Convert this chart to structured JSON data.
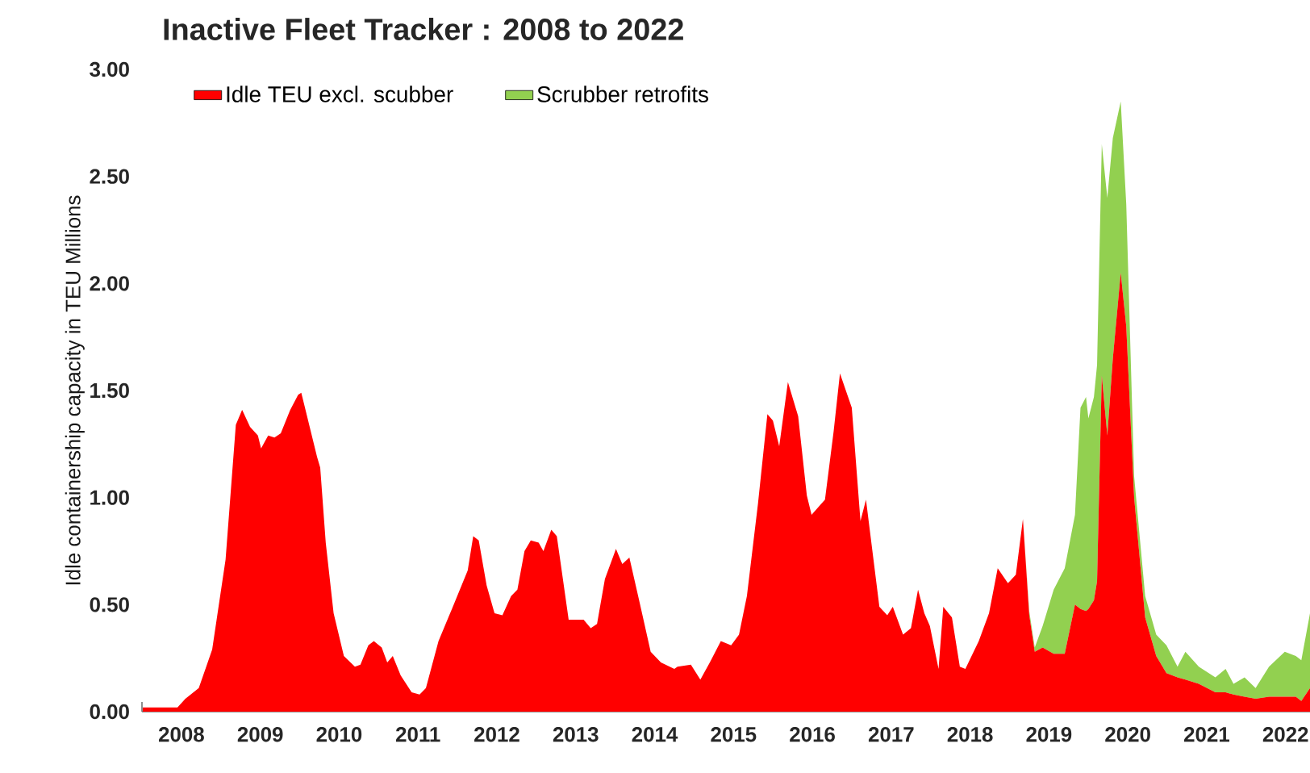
{
  "chart_data": {
    "type": "area",
    "title": "Inactive Fleet Tracker : 2008 to 2022",
    "ylabel": "Idle containership capacity in TEU Millions",
    "stacked": true,
    "legend": "top left",
    "x": [
      2008.01,
      2008.45,
      2008.55,
      2008.72,
      2008.89,
      2009.06,
      2009.19,
      2009.27,
      2009.37,
      2009.47,
      2009.51,
      2009.6,
      2009.68,
      2009.76,
      2009.88,
      2009.98,
      2010.02,
      2010.12,
      2010.22,
      2010.26,
      2010.33,
      2010.43,
      2010.56,
      2010.7,
      2010.77,
      2010.87,
      2010.94,
      2011.04,
      2011.11,
      2011.18,
      2011.28,
      2011.42,
      2011.52,
      2011.6,
      2011.76,
      2011.93,
      2012.13,
      2012.2,
      2012.27,
      2012.37,
      2012.47,
      2012.57,
      2012.68,
      2012.76,
      2012.85,
      2012.93,
      2013.03,
      2013.09,
      2013.19,
      2013.26,
      2013.41,
      2013.6,
      2013.69,
      2013.77,
      2013.87,
      2014.01,
      2014.09,
      2014.18,
      2014.31,
      2014.45,
      2014.58,
      2014.75,
      2014.79,
      2014.96,
      2015.08,
      2015.2,
      2015.34,
      2015.47,
      2015.57,
      2015.67,
      2015.81,
      2015.93,
      2016.0,
      2016.08,
      2016.19,
      2016.32,
      2016.43,
      2016.49,
      2016.66,
      2016.77,
      2016.85,
      2017.0,
      2017.11,
      2017.18,
      2017.35,
      2017.45,
      2017.52,
      2017.65,
      2017.75,
      2017.84,
      2017.92,
      2017.99,
      2018.1,
      2018.16,
      2018.27,
      2018.37,
      2018.44,
      2018.61,
      2018.74,
      2018.85,
      2018.98,
      2019.08,
      2019.17,
      2019.25,
      2019.32,
      2019.42,
      2019.56,
      2019.7,
      2019.83,
      2019.9,
      2019.97,
      2020.0,
      2020.07,
      2020.11,
      2020.17,
      2020.24,
      2020.31,
      2020.41,
      2020.48,
      2020.58,
      2020.72,
      2020.86,
      2020.99,
      2021.13,
      2021.23,
      2021.4,
      2021.61,
      2021.74,
      2021.84,
      2021.98,
      2022.12,
      2022.29,
      2022.49,
      2022.63,
      2022.7,
      2022.81
    ],
    "series": [
      {
        "name": "Idle TEU excl. scubber",
        "color": "#ff0000",
        "values": [
          0.02,
          0.02,
          0.06,
          0.11,
          0.29,
          0.71,
          1.34,
          1.41,
          1.33,
          1.29,
          1.23,
          1.29,
          1.28,
          1.3,
          1.41,
          1.48,
          1.49,
          1.34,
          1.19,
          1.14,
          0.79,
          0.46,
          0.26,
          0.21,
          0.22,
          0.31,
          0.33,
          0.3,
          0.23,
          0.26,
          0.17,
          0.09,
          0.08,
          0.11,
          0.33,
          0.48,
          0.66,
          0.82,
          0.8,
          0.59,
          0.46,
          0.45,
          0.54,
          0.57,
          0.75,
          0.8,
          0.79,
          0.75,
          0.85,
          0.82,
          0.43,
          0.43,
          0.39,
          0.41,
          0.62,
          0.76,
          0.69,
          0.72,
          0.51,
          0.28,
          0.23,
          0.2,
          0.21,
          0.22,
          0.15,
          0.23,
          0.33,
          0.31,
          0.36,
          0.54,
          0.97,
          1.39,
          1.36,
          1.24,
          1.54,
          1.38,
          1.01,
          0.92,
          0.99,
          1.31,
          1.58,
          1.42,
          0.89,
          0.99,
          0.49,
          0.45,
          0.49,
          0.36,
          0.39,
          0.57,
          0.46,
          0.4,
          0.2,
          0.49,
          0.44,
          0.21,
          0.2,
          0.33,
          0.46,
          0.67,
          0.6,
          0.64,
          0.9,
          0.45,
          0.28,
          0.3,
          0.27,
          0.27,
          0.5,
          0.48,
          0.47,
          0.48,
          0.52,
          0.61,
          1.57,
          1.29,
          1.65,
          2.05,
          1.8,
          1.0,
          0.44,
          0.26,
          0.18,
          0.16,
          0.15,
          0.13,
          0.09,
          0.09,
          0.08,
          0.07,
          0.06,
          0.07,
          0.07,
          0.07,
          0.05,
          0.11
        ]
      },
      {
        "name": "Scrubber retrofits",
        "color": "#92d050",
        "values": [
          0,
          0,
          0,
          0,
          0,
          0,
          0,
          0,
          0,
          0,
          0,
          0,
          0,
          0,
          0,
          0,
          0,
          0,
          0,
          0,
          0,
          0,
          0,
          0,
          0,
          0,
          0,
          0,
          0,
          0,
          0,
          0,
          0,
          0,
          0,
          0,
          0,
          0,
          0,
          0,
          0,
          0,
          0,
          0,
          0,
          0,
          0,
          0,
          0,
          0,
          0,
          0,
          0,
          0,
          0,
          0,
          0,
          0,
          0,
          0,
          0,
          0,
          0,
          0,
          0,
          0,
          0,
          0,
          0,
          0,
          0,
          0,
          0,
          0,
          0,
          0,
          0,
          0,
          0,
          0,
          0,
          0,
          0,
          0,
          0,
          0,
          0,
          0,
          0,
          0,
          0,
          0,
          0,
          0,
          0,
          0,
          0,
          0,
          0,
          0,
          0,
          0,
          0,
          0.02,
          0.02,
          0.1,
          0.3,
          0.4,
          0.42,
          0.94,
          1.0,
          0.89,
          0.95,
          1.01,
          1.08,
          1.11,
          1.03,
          0.8,
          0.57,
          0.1,
          0.1,
          0.1,
          0.13,
          0.05,
          0.13,
          0.08,
          0.07,
          0.11,
          0.05,
          0.09,
          0.05,
          0.14,
          0.21,
          0.19,
          0.19,
          0.35
        ]
      }
    ],
    "xlim": [
      2008,
      2022.81
    ],
    "ylim": [
      0,
      3
    ],
    "xticks": [
      {
        "value": 2008,
        "label": null
      },
      {
        "value": 2009,
        "label": null
      },
      {
        "value": 2010,
        "label": null
      },
      {
        "value": 2011,
        "label": null
      },
      {
        "value": 2012,
        "label": null
      },
      {
        "value": 2013,
        "label": null
      },
      {
        "value": 2014,
        "label": null
      },
      {
        "value": 2015,
        "label": null
      },
      {
        "value": 2016,
        "label": null
      },
      {
        "value": 2017,
        "label": null
      },
      {
        "value": 2018,
        "label": null
      },
      {
        "value": 2019,
        "label": null
      },
      {
        "value": 2020,
        "label": null
      },
      {
        "value": 2021,
        "label": null
      },
      {
        "value": 2022,
        "label": null
      },
      {
        "value": 2008.5,
        "label": "2008"
      },
      {
        "value": 2009.5,
        "label": "2009"
      },
      {
        "value": 2010.5,
        "label": "2010"
      },
      {
        "value": 2011.5,
        "label": "2011"
      },
      {
        "value": 2012.5,
        "label": "2012"
      },
      {
        "value": 2013.5,
        "label": "2013"
      },
      {
        "value": 2014.5,
        "label": "2014"
      },
      {
        "value": 2015.5,
        "label": "2015"
      },
      {
        "value": 2016.5,
        "label": "2016"
      },
      {
        "value": 2017.5,
        "label": "2017"
      },
      {
        "value": 2018.5,
        "label": "2018"
      },
      {
        "value": 2019.5,
        "label": "2019"
      },
      {
        "value": 2020.5,
        "label": "2020"
      },
      {
        "value": 2021.5,
        "label": "2021"
      },
      {
        "value": 2022.5,
        "label": "2022"
      }
    ],
    "yticks": [
      {
        "value": 0,
        "label": "0.00"
      },
      {
        "value": 0.5,
        "label": "0.50"
      },
      {
        "value": 1,
        "label": "1.00"
      },
      {
        "value": 1.5,
        "label": "1.50"
      },
      {
        "value": 2,
        "label": "2.00"
      },
      {
        "value": 2.5,
        "label": "2.50"
      },
      {
        "value": 3,
        "label": "3.00"
      }
    ]
  }
}
